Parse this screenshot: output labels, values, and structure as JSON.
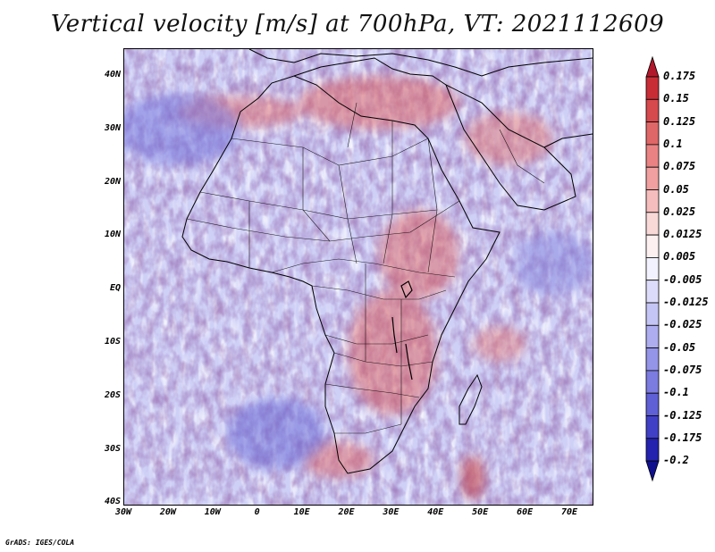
{
  "title": "Vertical velocity [m/s] at 700hPa, VT: 2021112609",
  "credit": "GrADS: IGES/COLA",
  "map": {
    "lat_labels": [
      "40N",
      "30N",
      "20N",
      "10N",
      "EQ",
      "10S",
      "20S",
      "30S",
      "40S"
    ],
    "lon_labels": [
      "30W",
      "20W",
      "10W",
      "0",
      "10E",
      "20E",
      "30E",
      "40E",
      "50E",
      "60E",
      "70E"
    ],
    "lat_range": [
      -40,
      45
    ],
    "lon_range": [
      -30,
      75
    ]
  },
  "colorbar": {
    "labels": [
      "0.175",
      "0.15",
      "0.125",
      "0.1",
      "0.075",
      "0.05",
      "0.025",
      "0.0125",
      "0.005",
      "-0.005",
      "-0.0125",
      "-0.025",
      "-0.05",
      "-0.075",
      "-0.1",
      "-0.125",
      "-0.175",
      "-0.2"
    ],
    "colors": [
      "#b2182b",
      "#c82d36",
      "#d6494d",
      "#e06767",
      "#e98383",
      "#f0a0a0",
      "#f5bdbd",
      "#f9d8d8",
      "#fdf0f0",
      "#f2f2fe",
      "#dcdcfa",
      "#c5c5f5",
      "#adadef",
      "#9494e8",
      "#7b7be0",
      "#5f5fd6",
      "#4040c6",
      "#2323b0",
      "#10108f"
    ]
  },
  "colors": {
    "pos": "#d23c3c",
    "neg": "#4a4ad8",
    "coast": "#000000"
  }
}
